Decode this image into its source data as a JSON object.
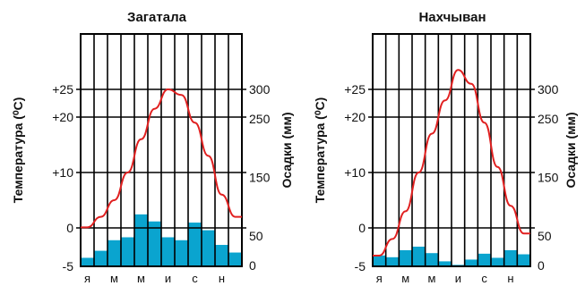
{
  "chart_data": [
    {
      "type": "bar",
      "title": "Загатала",
      "ylabel_left": "Температура (⁰С)",
      "ylabel_right": "Осадки (мм)",
      "categories": [
        "я",
        "",
        "м",
        "",
        "м",
        "",
        "и",
        "",
        "с",
        "",
        "н",
        ""
      ],
      "temp_ticks": [
        {
          "value": 25,
          "label": "+25"
        },
        {
          "value": 20,
          "label": "+20"
        },
        {
          "value": 10,
          "label": "+10"
        },
        {
          "value": 0,
          "label": "0"
        },
        {
          "value": -5,
          "label": "-5"
        }
      ],
      "precip_ticks": [
        {
          "value": 300,
          "label": "300"
        },
        {
          "value": 250,
          "label": "250"
        },
        {
          "value": 150,
          "label": "150"
        },
        {
          "value": 50,
          "label": "50"
        },
        {
          "value": 0,
          "label": "0"
        }
      ],
      "temp_range": [
        -5,
        33
      ],
      "precip_range": [
        0,
        300
      ],
      "series": [
        {
          "name": "",
          "kind": "precipitation_bars",
          "color": "#0aa4cf",
          "values": [
            13,
            25,
            43,
            48,
            87,
            75,
            48,
            43,
            73,
            60,
            35,
            22
          ]
        },
        {
          "name": "",
          "kind": "temperature_line",
          "color": "#e02020",
          "values": [
            0.1,
            2,
            5,
            10,
            16,
            21.5,
            25,
            24,
            19,
            13,
            6,
            2
          ]
        }
      ]
    },
    {
      "type": "bar",
      "title": "Нахчыван",
      "ylabel_left": "Температура (⁰С)",
      "ylabel_right": "Осадки (мм)",
      "categories": [
        "я",
        "",
        "м",
        "",
        "м",
        "",
        "и",
        "",
        "с",
        "",
        "н",
        ""
      ],
      "temp_ticks": [
        {
          "value": 25,
          "label": "+25"
        },
        {
          "value": 20,
          "label": "+20"
        },
        {
          "value": 10,
          "label": "+10"
        },
        {
          "value": 0,
          "label": "0"
        },
        {
          "value": -5,
          "label": "-5"
        }
      ],
      "precip_ticks": [
        {
          "value": 300,
          "label": "300"
        },
        {
          "value": 250,
          "label": "250"
        },
        {
          "value": 150,
          "label": "150"
        },
        {
          "value": 50,
          "label": "50"
        },
        {
          "value": 0,
          "label": "0"
        }
      ],
      "temp_range": [
        -5,
        33
      ],
      "precip_range": [
        0,
        300
      ],
      "series": [
        {
          "name": "",
          "kind": "precipitation_bars",
          "color": "#0aa4cf",
          "values": [
            17,
            14,
            26,
            32,
            21,
            7,
            1,
            10,
            20,
            13,
            26,
            19
          ]
        },
        {
          "name": "",
          "kind": "temperature_line",
          "color": "#e02020",
          "values": [
            -5,
            -2,
            3,
            10,
            17,
            23,
            28.5,
            26,
            19,
            11,
            4,
            -1
          ]
        }
      ]
    }
  ]
}
